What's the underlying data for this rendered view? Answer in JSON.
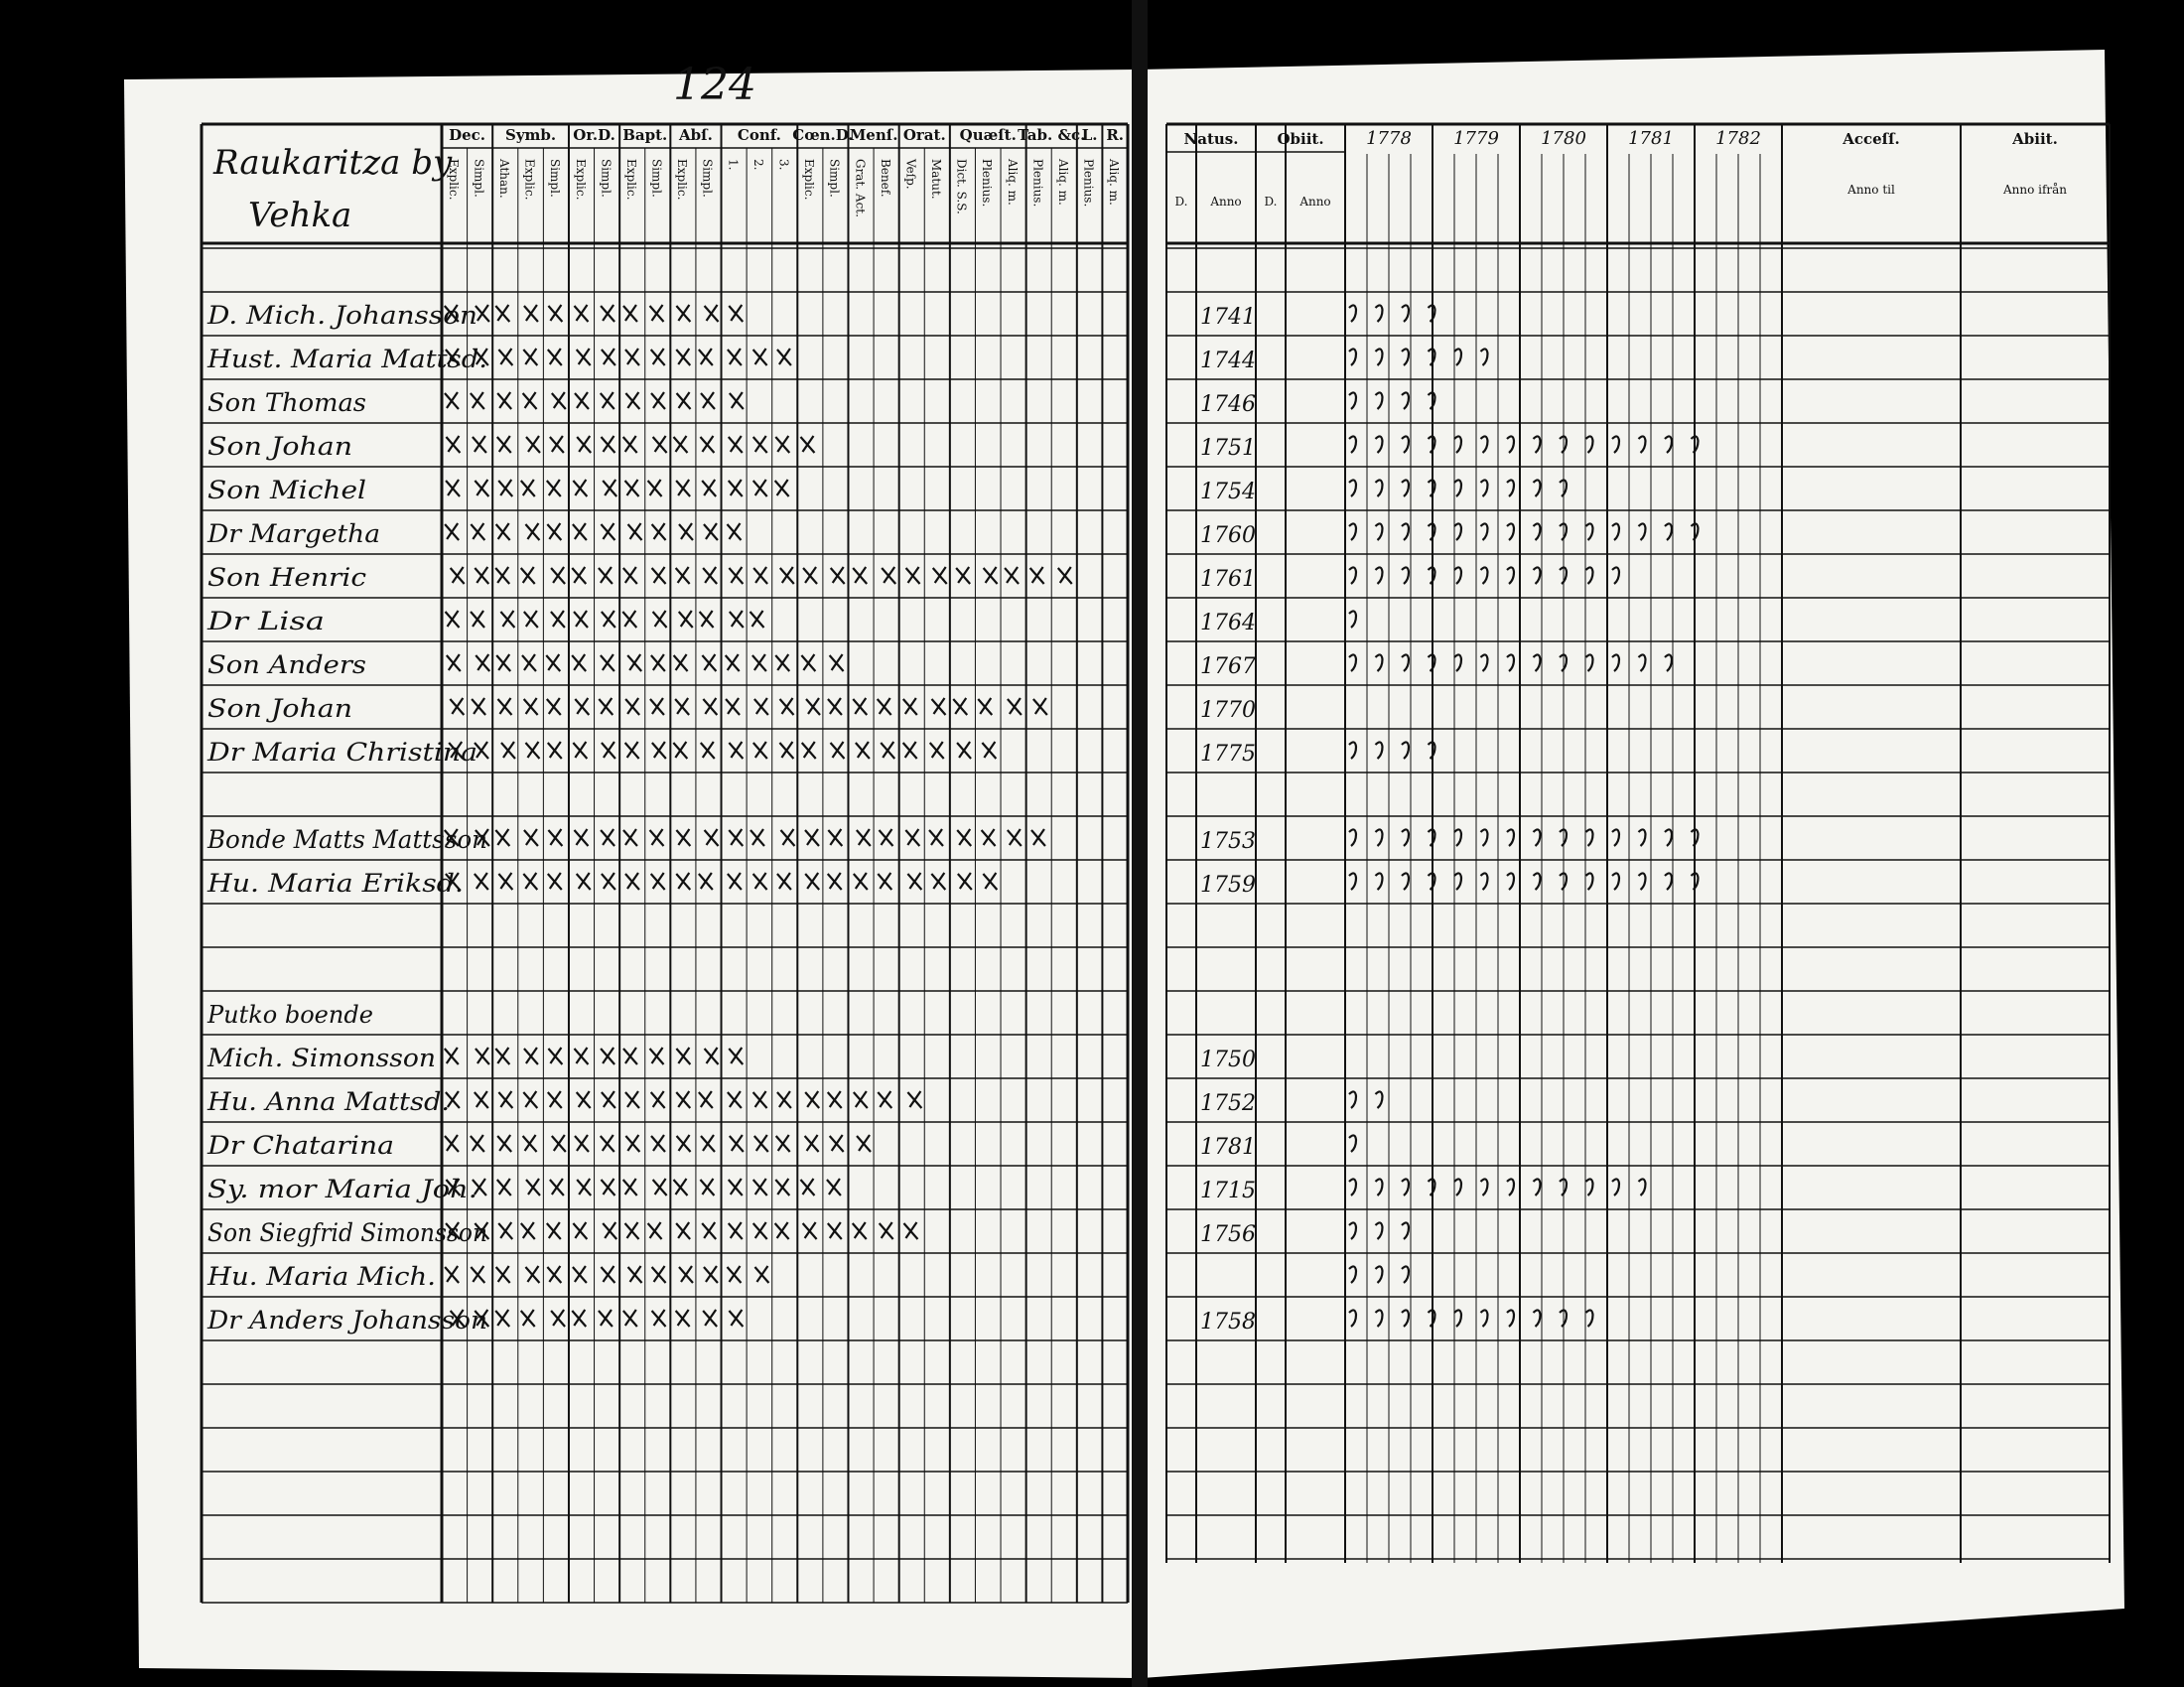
{
  "page_number": "124",
  "left_page": {
    "title": "Raukaritza by",
    "subtitle": "Vehka",
    "columns": [
      {
        "head": "Dec.",
        "subs": [
          "Explic.",
          "Simpl."
        ]
      },
      {
        "head": "Symb.",
        "subs": [
          "Athan.",
          "Explic.",
          "Simpl."
        ]
      },
      {
        "head": "Or.D.",
        "subs": [
          "Explic.",
          "Simpl."
        ]
      },
      {
        "head": "Bapt.",
        "subs": [
          "Explic.",
          "Simpl."
        ]
      },
      {
        "head": "Abſ.",
        "subs": [
          "Explic.",
          "Simpl."
        ]
      },
      {
        "head": "Conf.",
        "subs": [
          "1.",
          "2.",
          "3."
        ]
      },
      {
        "head": "Cœn.D.",
        "subs": [
          "Explic.",
          "Simpl."
        ]
      },
      {
        "head": "Menſ.",
        "subs": [
          "Grat. Act.",
          "Benef."
        ]
      },
      {
        "head": "Orat.",
        "subs": [
          "Veſp.",
          "Matut."
        ]
      },
      {
        "head": "Quæſt.",
        "subs": [
          "Dict. S.S.",
          "Plenius.",
          "Aliq. m."
        ]
      },
      {
        "head": "Tab. &c.",
        "subs": [
          "Plenius.",
          "Aliq. m."
        ]
      },
      {
        "head": "L.",
        "subs": [
          "Plenius."
        ]
      },
      {
        "head": "R.",
        "subs": [
          "Aliq. m."
        ]
      }
    ]
  },
  "right_page": {
    "natus": {
      "head": "Natus.",
      "day": "D.",
      "year": "Anno"
    },
    "obiit": {
      "head": "Obiit.",
      "day": "D.",
      "year": "Anno"
    },
    "years": [
      "1778",
      "1779",
      "1780",
      "1781",
      "1782"
    ],
    "accessit": {
      "head": "Acceſſ.",
      "sub": "Anno til"
    },
    "abiit": {
      "head": "Abiit.",
      "sub": "Anno ifrån"
    }
  },
  "households": [
    {
      "label": null,
      "members": [
        {
          "name": "D. Mich. Johansson",
          "born": "1741"
        },
        {
          "name": "Hust. Maria Mattsd.",
          "born": "1744"
        },
        {
          "name": "Son Thomas",
          "born": "1746"
        },
        {
          "name": "Son Johan",
          "born": "1751"
        },
        {
          "name": "Son Michel",
          "born": "1754"
        },
        {
          "name": "Dr Margetha",
          "born": "1760"
        },
        {
          "name": "Son Henric",
          "born": "1761"
        },
        {
          "name": "Dr Lisa",
          "born": "1764"
        },
        {
          "name": "Son Anders",
          "born": "1767"
        },
        {
          "name": "Son Johan",
          "born": "1770"
        },
        {
          "name": "Dr Maria Christina",
          "born": "1775"
        }
      ]
    },
    {
      "label": null,
      "members": [
        {
          "name": "Bonde Matts Mattsson",
          "born": "1753"
        },
        {
          "name": "Hu. Maria Eriksd.",
          "born": "1759"
        }
      ]
    },
    {
      "label": "Putko boende",
      "members": [
        {
          "name": "Mich. Simonsson",
          "born": "1750"
        },
        {
          "name": "Hu. Anna Mattsd.",
          "born": "1752"
        },
        {
          "name": "Dr Chatarina",
          "born": "1781"
        },
        {
          "name": "Sy. mor Maria Joh.",
          "born": "1715"
        },
        {
          "name": "Son Siegfrid Simonsson",
          "born": "1756"
        },
        {
          "name": "Hu. Maria Mich.",
          "born": null
        },
        {
          "name": "Dr Anders Johansson",
          "born": "1758"
        }
      ]
    }
  ]
}
